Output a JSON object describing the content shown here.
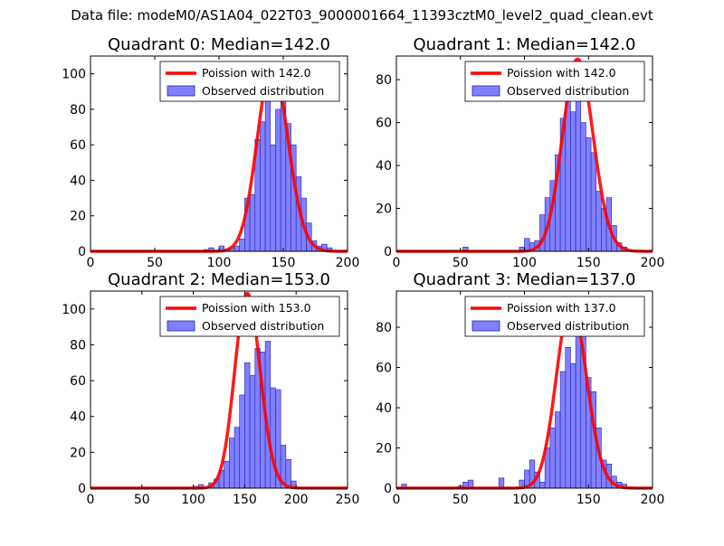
{
  "suptitle": "Data file: modeM0/AS1A04_022T03_9000001664_11393cztM0_level2_quad_clean.evt",
  "colors": {
    "hist_fill": "#8080ff",
    "hist_edge": "#2222aa",
    "poisson": "#ff0000"
  },
  "chart_data": [
    {
      "type": "bar",
      "title": "Quadrant 0: Median=142.0",
      "median": 142.0,
      "xlim": [
        0,
        200
      ],
      "ylim": [
        0,
        110
      ],
      "xticks": [
        0,
        50,
        100,
        150,
        200
      ],
      "yticks": [
        0,
        20,
        40,
        60,
        80,
        100
      ],
      "bin_width": 4,
      "bins_start": [
        0,
        4,
        8,
        12,
        16,
        20,
        24,
        28,
        32,
        36,
        40,
        44,
        48,
        52,
        56,
        60,
        64,
        68,
        72,
        76,
        80,
        84,
        88,
        92,
        96,
        100,
        104,
        108,
        112,
        116,
        120,
        124,
        128,
        132,
        136,
        140,
        144,
        148,
        152,
        156,
        160,
        164,
        168,
        172,
        176,
        180,
        184,
        188,
        192,
        196
      ],
      "counts": [
        0,
        0,
        0,
        0,
        0,
        0,
        0,
        0,
        0,
        0,
        0,
        0,
        0,
        0,
        0,
        0,
        0,
        0,
        0,
        0,
        0,
        0,
        1,
        2,
        0,
        3,
        1,
        2,
        3,
        7,
        30,
        32,
        63,
        73,
        90,
        60,
        80,
        100,
        72,
        60,
        42,
        30,
        16,
        6,
        3,
        4,
        2,
        0,
        0,
        0
      ],
      "legend": [
        "Poission with 142.0",
        "Observed distribution"
      ]
    },
    {
      "type": "bar",
      "title": "Quadrant 1: Median=142.0",
      "median": 142.0,
      "xlim": [
        0,
        200
      ],
      "ylim": [
        0,
        91
      ],
      "xticks": [
        0,
        50,
        100,
        150,
        200
      ],
      "yticks": [
        0,
        20,
        40,
        60,
        80
      ],
      "bin_width": 4,
      "bins_start": [
        0,
        4,
        8,
        12,
        16,
        20,
        24,
        28,
        32,
        36,
        40,
        44,
        48,
        52,
        56,
        60,
        64,
        68,
        72,
        76,
        80,
        84,
        88,
        92,
        96,
        100,
        104,
        108,
        112,
        116,
        120,
        124,
        128,
        132,
        136,
        140,
        144,
        148,
        152,
        156,
        160,
        164,
        168,
        172,
        176,
        180,
        184,
        188,
        192,
        196
      ],
      "counts": [
        0,
        0,
        0,
        0,
        0,
        0,
        0,
        0,
        0,
        0,
        0,
        0,
        0,
        2,
        0,
        0,
        0,
        0,
        0,
        0,
        0,
        0,
        0,
        0,
        2,
        6,
        4,
        5,
        17,
        25,
        33,
        45,
        62,
        83,
        65,
        70,
        60,
        53,
        46,
        28,
        20,
        25,
        12,
        4,
        2,
        0,
        0,
        0,
        0,
        0
      ],
      "legend": [
        "Poission with 142.0",
        "Observed distribution"
      ]
    },
    {
      "type": "bar",
      "title": "Quadrant 2: Median=153.0",
      "median": 153.0,
      "xlim": [
        0,
        250
      ],
      "ylim": [
        0,
        110
      ],
      "xticks": [
        0,
        50,
        100,
        150,
        200,
        250
      ],
      "yticks": [
        0,
        20,
        40,
        60,
        80,
        100
      ],
      "bin_width": 5,
      "bins_start": [
        0,
        5,
        10,
        15,
        20,
        25,
        30,
        35,
        40,
        45,
        50,
        55,
        60,
        65,
        70,
        75,
        80,
        85,
        90,
        95,
        100,
        105,
        110,
        115,
        120,
        125,
        130,
        135,
        140,
        145,
        150,
        155,
        160,
        165,
        170,
        175,
        180,
        185,
        190,
        195,
        200,
        205,
        210,
        215,
        220,
        225,
        230,
        235,
        240,
        245
      ],
      "counts": [
        0,
        0,
        0,
        0,
        0,
        0,
        0,
        0,
        0,
        0,
        0,
        0,
        0,
        0,
        0,
        0,
        0,
        0,
        0,
        0,
        1,
        2,
        0,
        3,
        5,
        10,
        15,
        28,
        34,
        52,
        70,
        63,
        78,
        76,
        82,
        56,
        55,
        24,
        16,
        4,
        0,
        0,
        0,
        0,
        0,
        0,
        0,
        0,
        0,
        0
      ],
      "legend": [
        "Poission with 153.0",
        "Observed distribution"
      ]
    },
    {
      "type": "bar",
      "title": "Quadrant 3: Median=137.0",
      "median": 137.0,
      "xlim": [
        0,
        200
      ],
      "ylim": [
        0,
        98
      ],
      "xticks": [
        0,
        50,
        100,
        150,
        200
      ],
      "yticks": [
        0,
        20,
        40,
        60,
        80
      ],
      "bin_width": 4,
      "bins_start": [
        0,
        4,
        8,
        12,
        16,
        20,
        24,
        28,
        32,
        36,
        40,
        44,
        48,
        52,
        56,
        60,
        64,
        68,
        72,
        76,
        80,
        84,
        88,
        92,
        96,
        100,
        104,
        108,
        112,
        116,
        120,
        124,
        128,
        132,
        136,
        140,
        144,
        148,
        152,
        156,
        160,
        164,
        168,
        172,
        176,
        180,
        184,
        188,
        192,
        196
      ],
      "counts": [
        0,
        2,
        0,
        0,
        0,
        0,
        0,
        0,
        0,
        0,
        0,
        0,
        1,
        3,
        4,
        0,
        0,
        0,
        0,
        0,
        5,
        0,
        0,
        0,
        4,
        9,
        14,
        8,
        3,
        20,
        30,
        38,
        58,
        70,
        62,
        88,
        88,
        55,
        48,
        30,
        14,
        12,
        6,
        3,
        2,
        0,
        0,
        0,
        0,
        0
      ],
      "legend": [
        "Poission with 137.0",
        "Observed distribution"
      ]
    }
  ]
}
